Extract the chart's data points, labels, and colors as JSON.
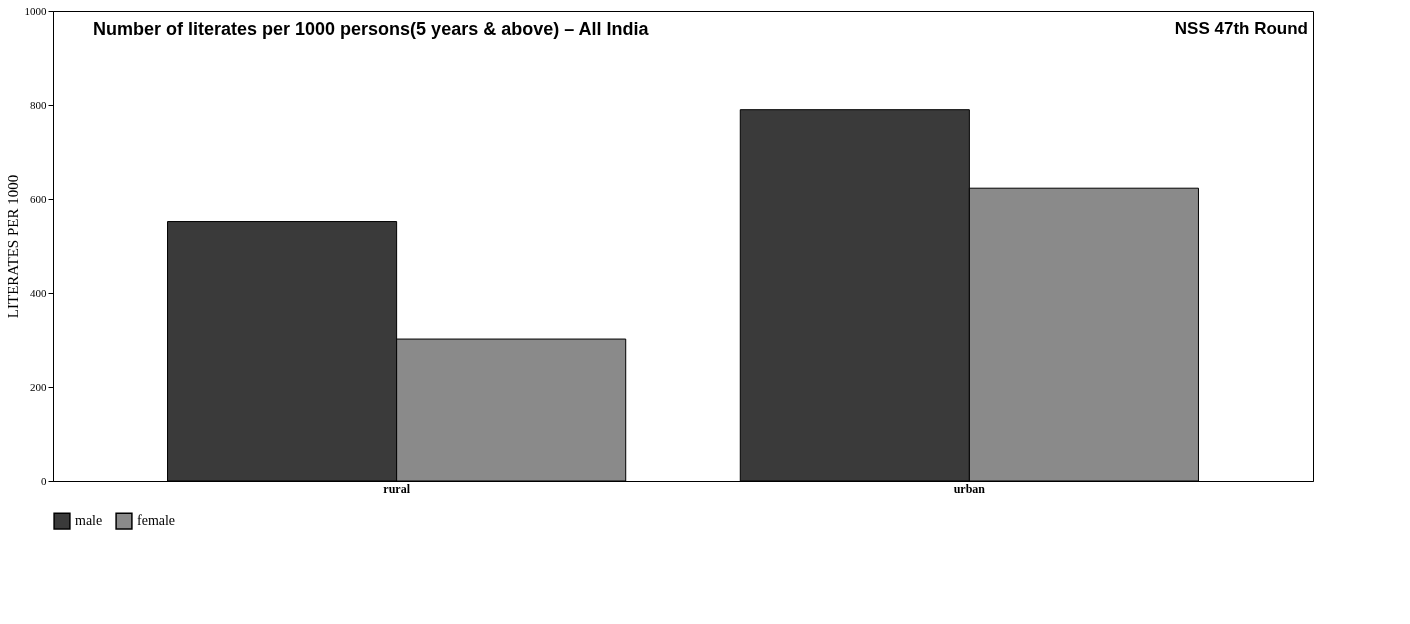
{
  "chart_data": {
    "type": "bar",
    "title": "Number of literates per 1000 persons(5 years & above) – All India",
    "ylabel": "LITERATES PER 1000",
    "annotations": [
      "NSS 47th Round"
    ],
    "categories": [
      "rural",
      "urban"
    ],
    "series": [
      {
        "name": "male",
        "color": "#3a3a3a",
        "values": [
          552,
          790
        ]
      },
      {
        "name": "female",
        "color": "#8a8a8a",
        "values": [
          302,
          623
        ]
      }
    ],
    "ylim": [
      0,
      1000
    ],
    "yticks": [
      0,
      200,
      400,
      600,
      800,
      1000
    ],
    "grid": false,
    "legend": "bottom"
  }
}
